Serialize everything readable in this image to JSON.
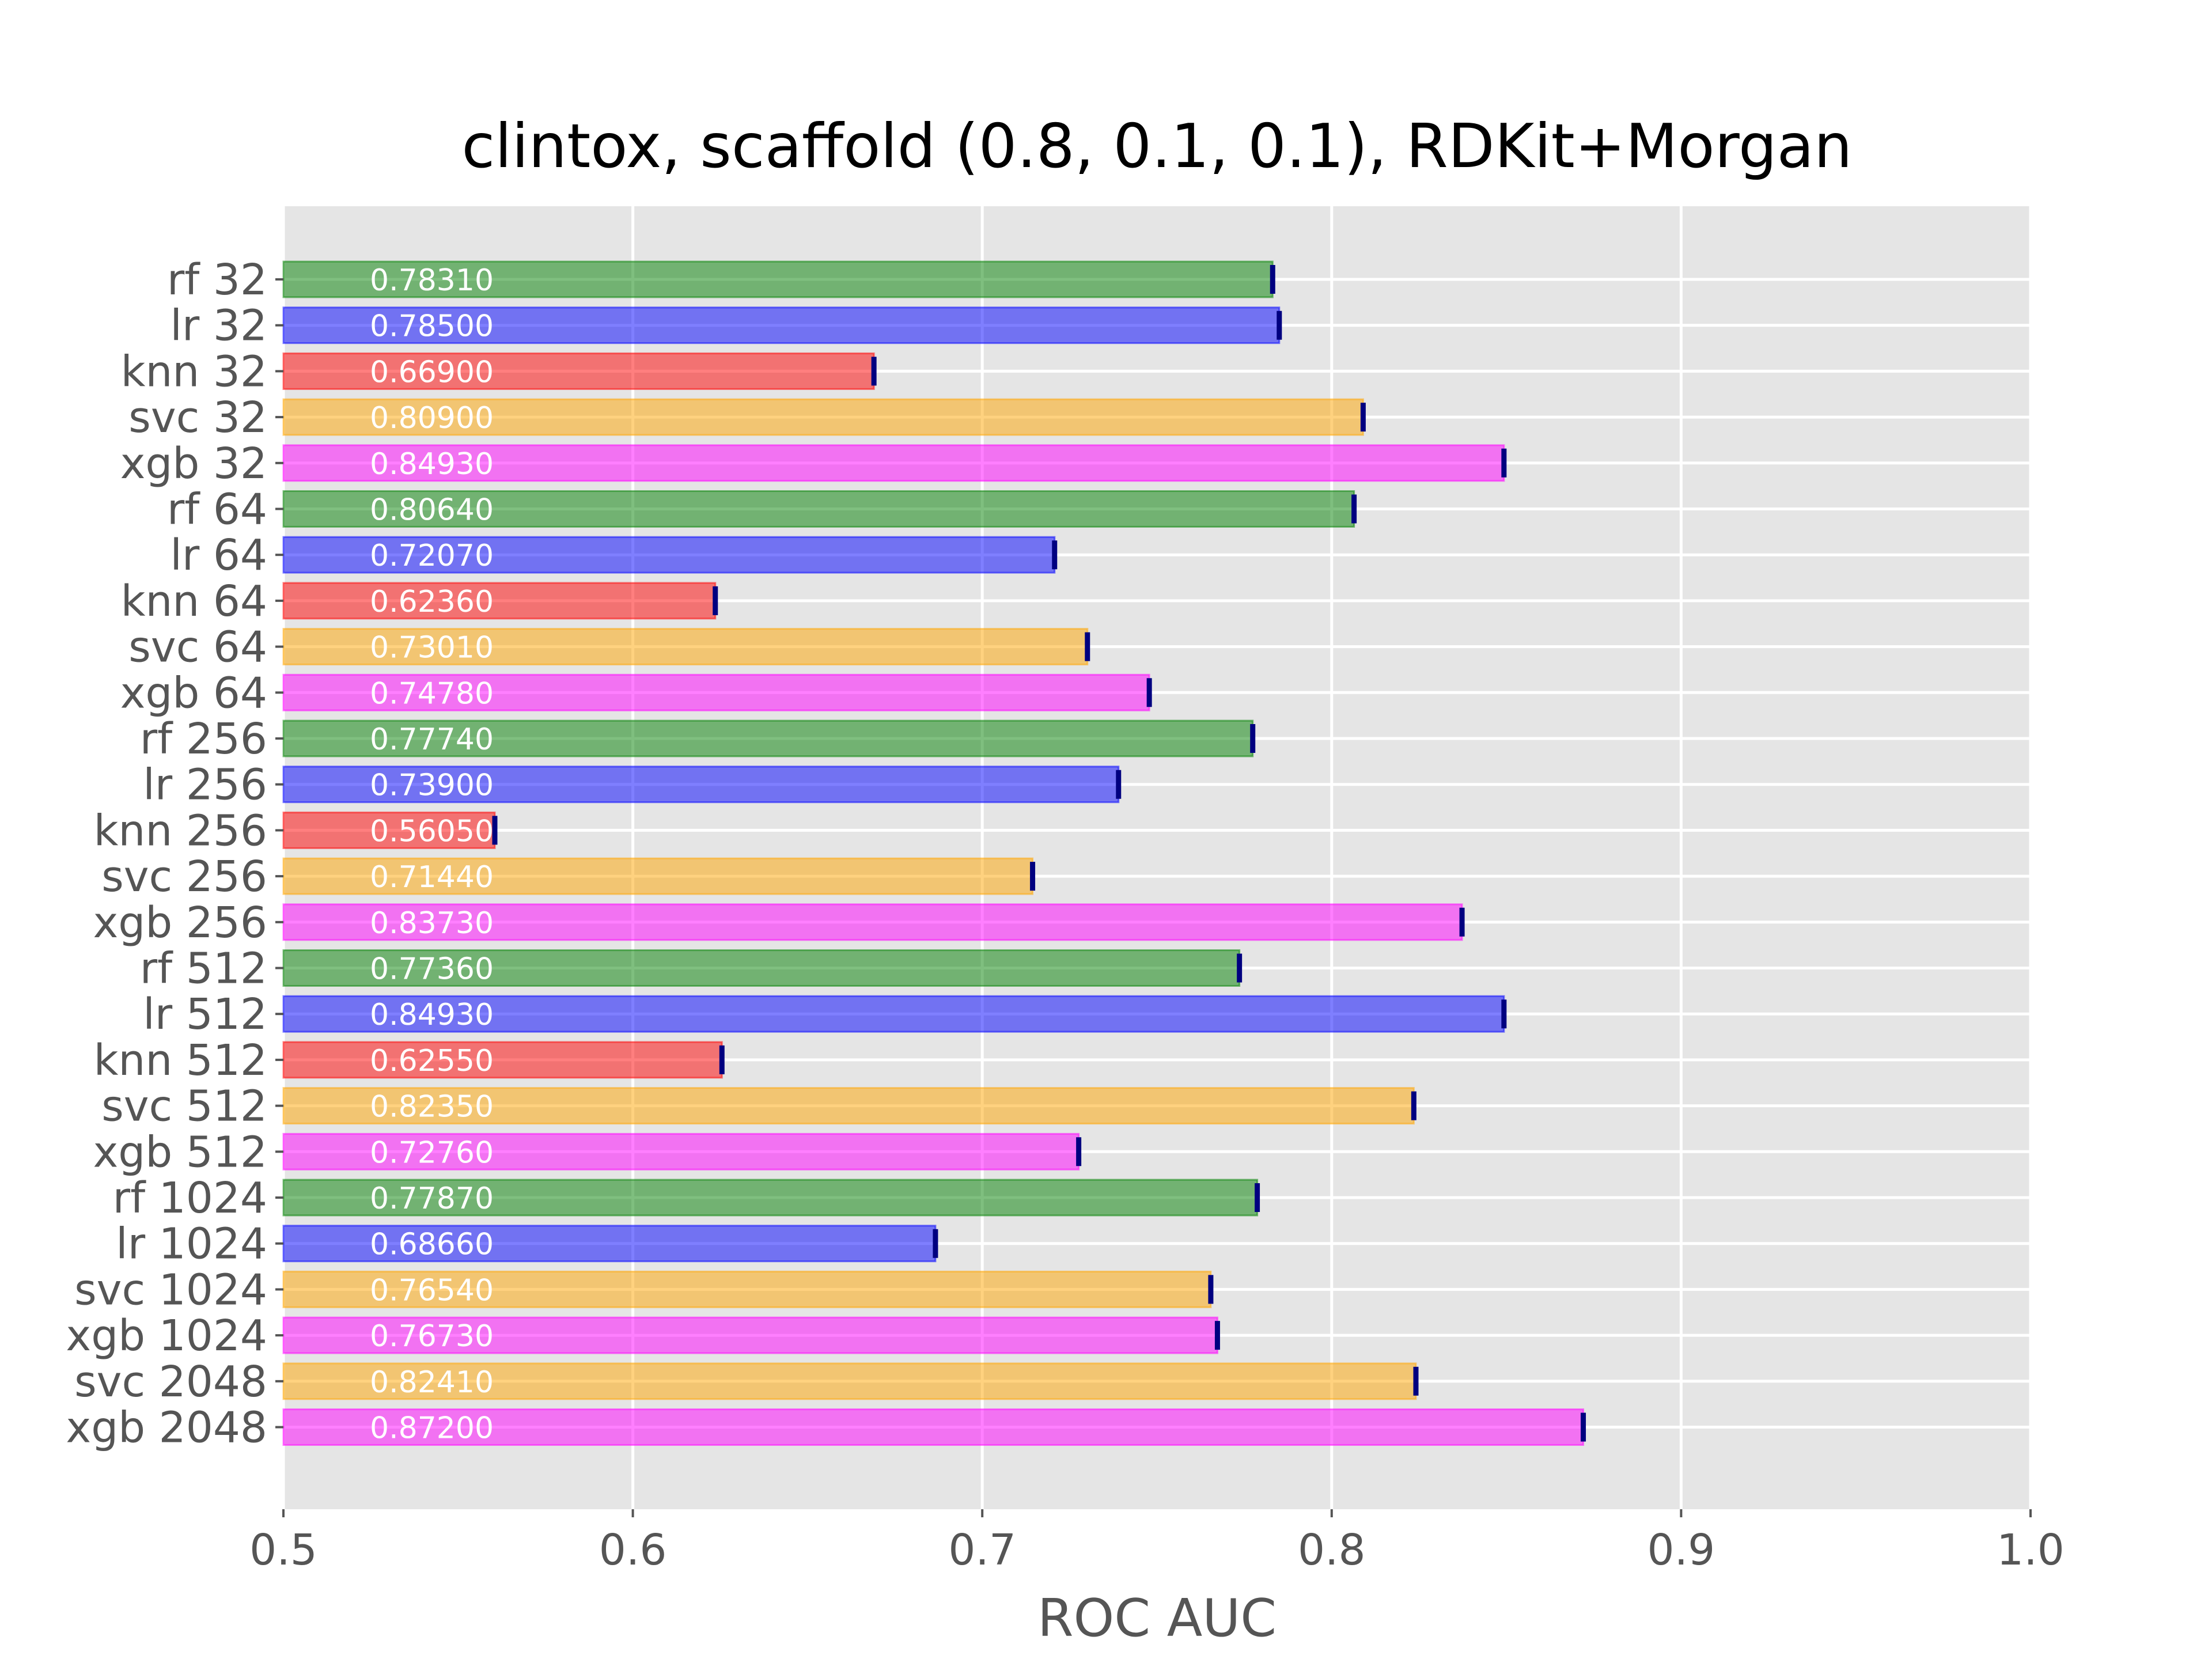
{
  "chart_data": {
    "type": "bar",
    "orientation": "horizontal",
    "title": "clintox, scaffold (0.8, 0.1, 0.1), RDKit+Morgan",
    "xlabel": "ROC AUC",
    "ylabel": "",
    "xlim": [
      0.5,
      1.0
    ],
    "xticks": [
      "0.5",
      "0.6",
      "0.7",
      "0.8",
      "0.9",
      "1.0"
    ],
    "grid": true,
    "legend": "none",
    "colors": {
      "rf": "#008000",
      "lr": "#0000ff",
      "knn": "#ff0000",
      "svc": "#ffa500",
      "xgb": "#ff00ff",
      "error_bar": "#000080",
      "background": "#e5e5e5",
      "grid": "#ffffff"
    },
    "categories": [
      "rf 32",
      "lr 32",
      "knn 32",
      "svc 32",
      "xgb 32",
      "rf 64",
      "lr 64",
      "knn 64",
      "svc 64",
      "xgb 64",
      "rf 256",
      "lr 256",
      "knn 256",
      "svc 256",
      "xgb 256",
      "rf 512",
      "lr 512",
      "knn 512",
      "svc 512",
      "xgb 512",
      "rf 1024",
      "lr 1024",
      "svc 1024",
      "xgb 1024",
      "svc 2048",
      "xgb 2048"
    ],
    "models": [
      "rf",
      "lr",
      "knn",
      "svc",
      "xgb",
      "rf",
      "lr",
      "knn",
      "svc",
      "xgb",
      "rf",
      "lr",
      "knn",
      "svc",
      "xgb",
      "rf",
      "lr",
      "knn",
      "svc",
      "xgb",
      "rf",
      "lr",
      "svc",
      "xgb",
      "svc",
      "xgb"
    ],
    "values": [
      0.7831,
      0.785,
      0.669,
      0.809,
      0.8493,
      0.8064,
      0.7207,
      0.6236,
      0.7301,
      0.7478,
      0.7774,
      0.739,
      0.5605,
      0.7144,
      0.8373,
      0.7736,
      0.8493,
      0.6255,
      0.8235,
      0.7276,
      0.7787,
      0.6866,
      0.7654,
      0.7673,
      0.8241,
      0.872
    ],
    "value_labels": [
      "0.78310",
      "0.78500",
      "0.66900",
      "0.80900",
      "0.84930",
      "0.80640",
      "0.72070",
      "0.62360",
      "0.73010",
      "0.74780",
      "0.77740",
      "0.73900",
      "0.56050",
      "0.71440",
      "0.83730",
      "0.77360",
      "0.84930",
      "0.62550",
      "0.82350",
      "0.72760",
      "0.77870",
      "0.68660",
      "0.76540",
      "0.76730",
      "0.82410",
      "0.87200"
    ]
  }
}
